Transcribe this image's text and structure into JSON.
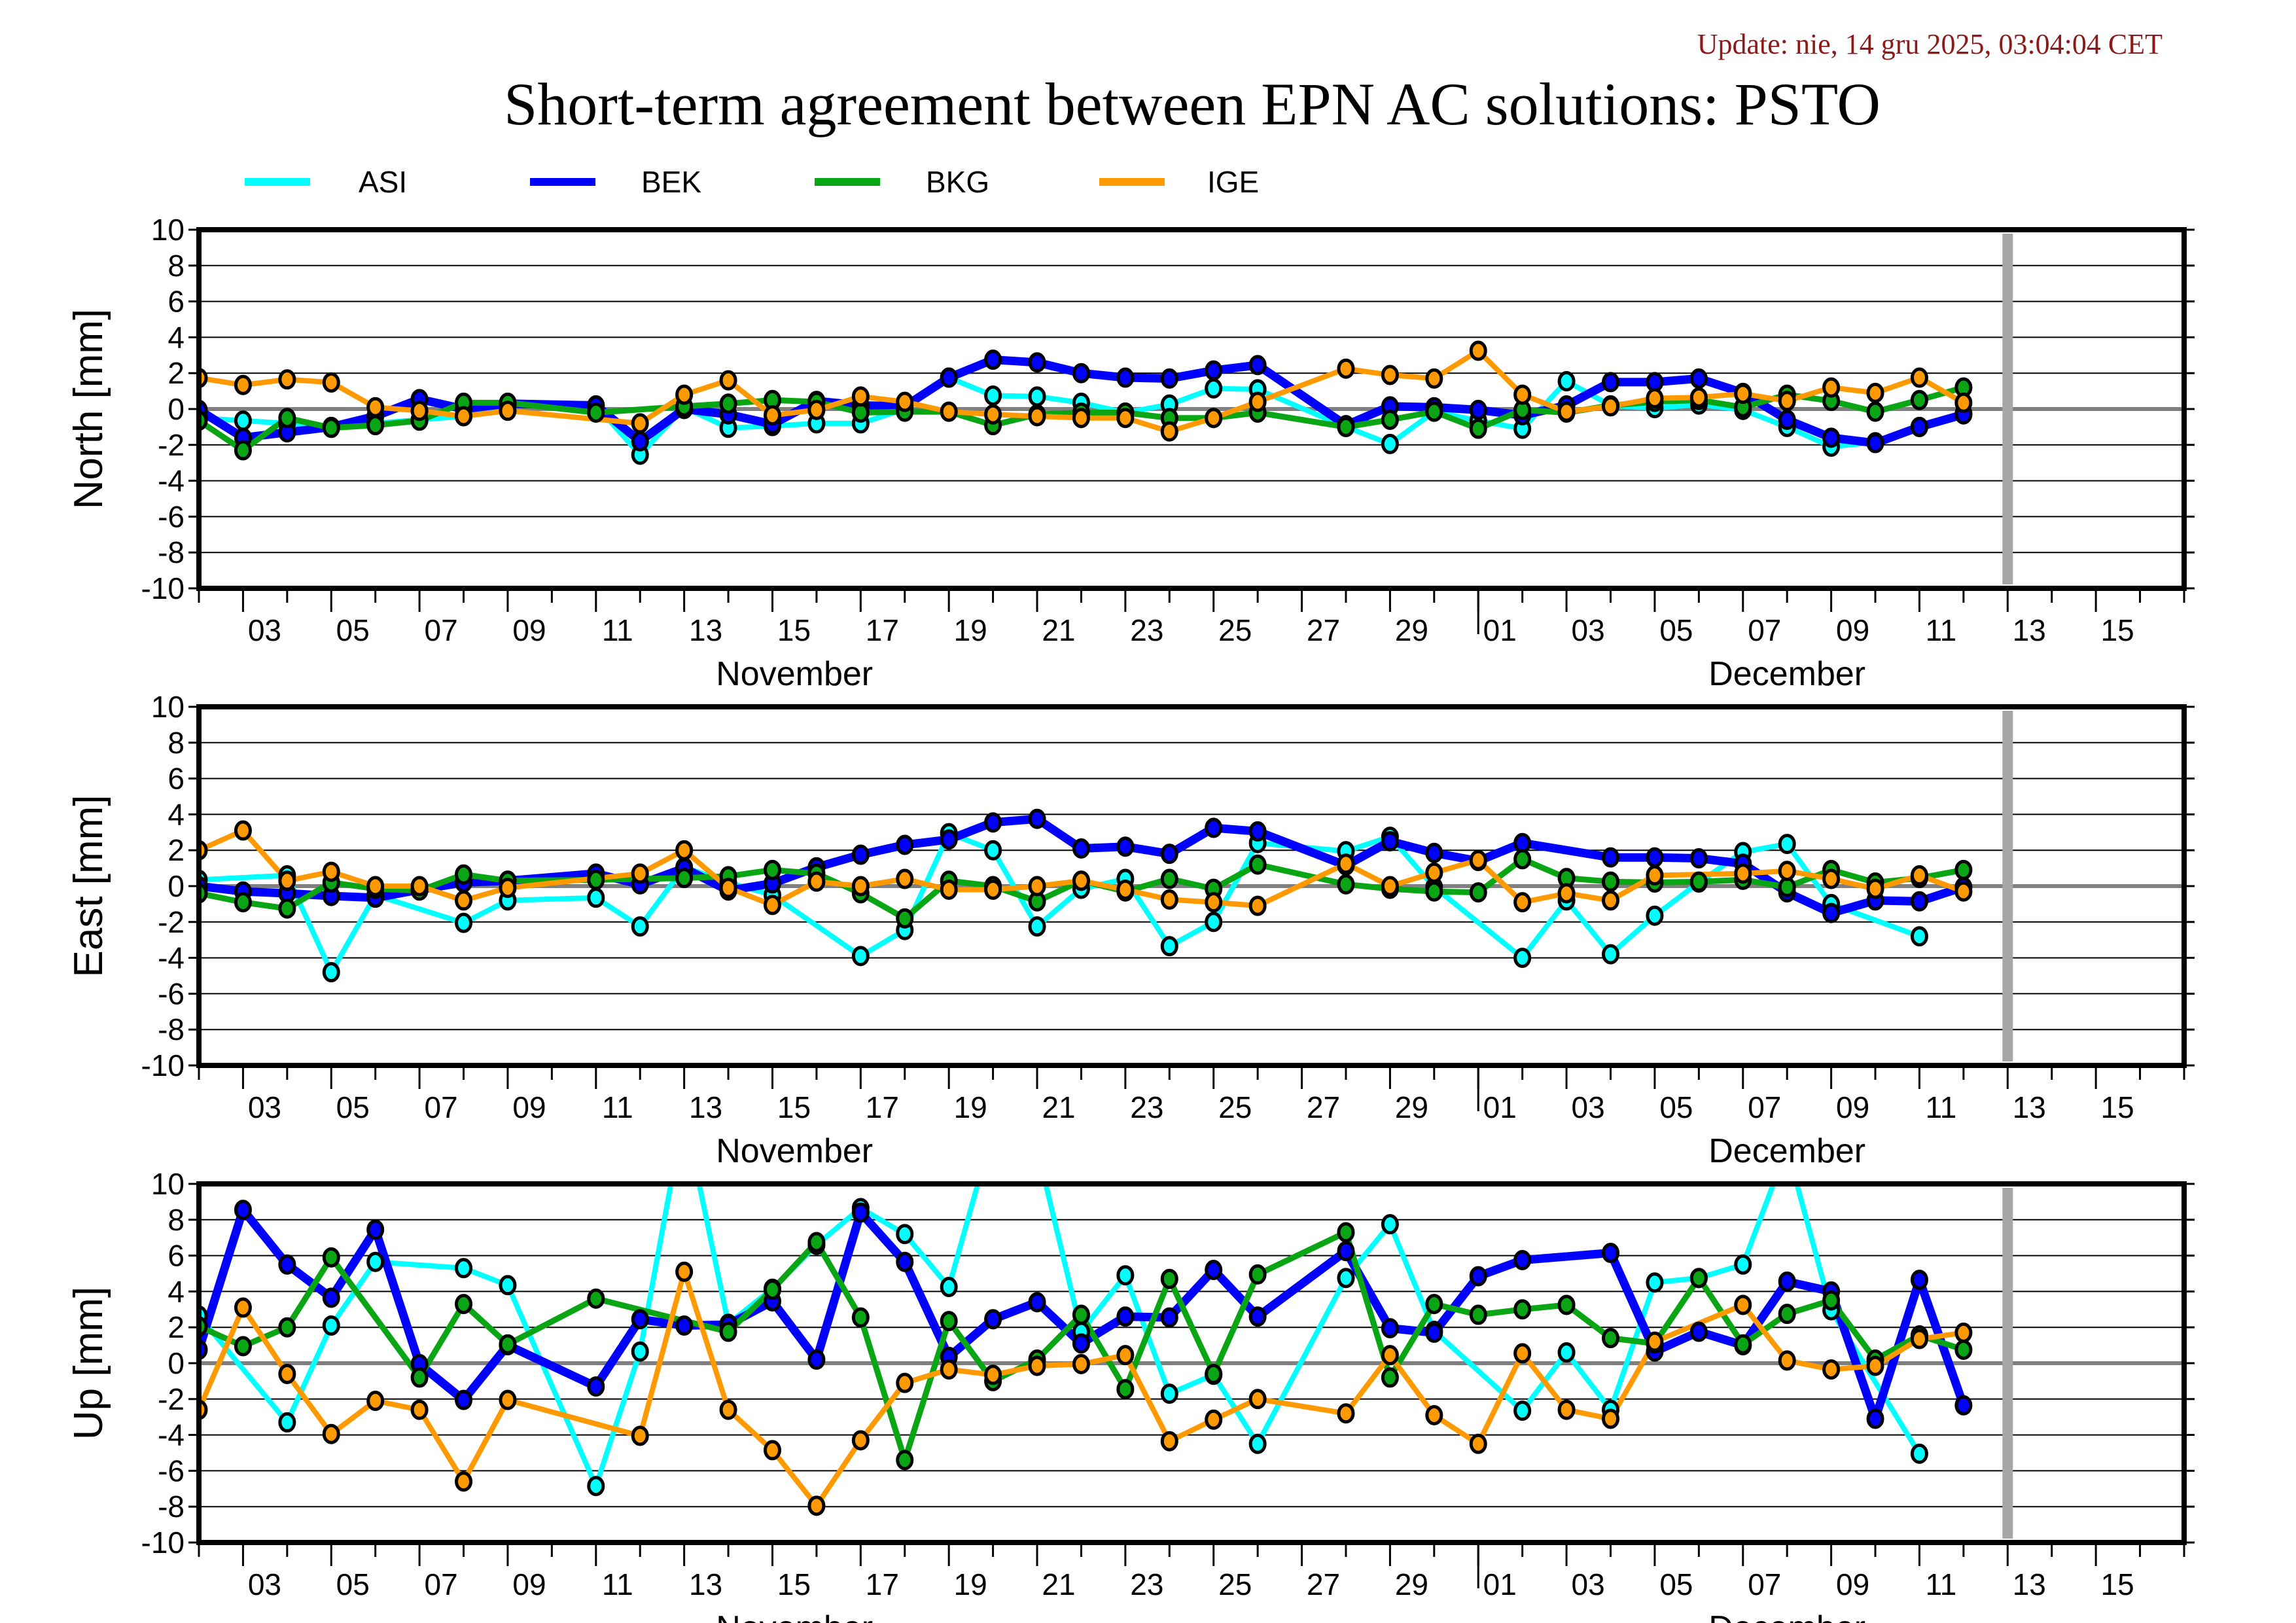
{
  "header": {
    "update": "Update: nie, 14 gru 2025, 03:04:04 CET",
    "title": "Short-term agreement between EPN AC solutions: PSTO"
  },
  "chart_data": {
    "type": "line",
    "title": "Short-term agreement between EPN AC solutions: PSTO",
    "legend_placement": "top",
    "grid": true,
    "x_range": [
      "2025-11-02",
      "2025-12-17"
    ],
    "x_major_tick_labels": [
      "03",
      "05",
      "07",
      "09",
      "11",
      "13",
      "15",
      "17",
      "19",
      "21",
      "23",
      "25",
      "27",
      "29",
      "01",
      "03",
      "05",
      "07",
      "09",
      "11",
      "13",
      "15"
    ],
    "x_major_tick_days": [
      3,
      5,
      7,
      9,
      11,
      13,
      15,
      17,
      19,
      21,
      23,
      25,
      27,
      29,
      31,
      33,
      35,
      37,
      39,
      41,
      43,
      45
    ],
    "month_labels": [
      {
        "label": "November",
        "center_day": 15.5
      },
      {
        "label": "December",
        "center_day": 38
      }
    ],
    "month_boundary_day": 31,
    "current_day_marker_day": 43,
    "y_ticks": [
      10,
      8,
      6,
      4,
      2,
      0,
      -2,
      -4,
      -6,
      -8,
      -10
    ],
    "series_meta": [
      {
        "name": "ASI",
        "color": "#00ffff"
      },
      {
        "name": "BEK",
        "color": "#0000ff"
      },
      {
        "name": "BKG",
        "color": "#0aa514"
      },
      {
        "name": "IGE",
        "color": "#ff9900"
      }
    ],
    "days_note": "x values are day-of-November (Dec d = 30 + d); first sample Nov 2, last Dec 12",
    "x": [
      2,
      3,
      4,
      5,
      6,
      7,
      8,
      9,
      10,
      11,
      12,
      13,
      14,
      15,
      16,
      17,
      18,
      19,
      20,
      21,
      22,
      23,
      24,
      25,
      26,
      27,
      28,
      29,
      30,
      31,
      32,
      33,
      34,
      35,
      36,
      37,
      38,
      39,
      40,
      41,
      42
    ],
    "panels": [
      {
        "ylabel": "North [mm]",
        "ylim": [
          -10,
          10
        ],
        "series": [
          {
            "name": "ASI",
            "values": [
              -0.5,
              -0.65,
              -0.8,
              -1.0,
              -0.8,
              -0.6,
              -0.4,
              0.3,
              null,
              0.2,
              -2.55,
              0.1,
              -1.05,
              -0.95,
              -0.8,
              -0.8,
              0.0,
              1.75,
              0.75,
              0.7,
              0.35,
              -0.2,
              0.25,
              1.15,
              1.1,
              null,
              -1.0,
              -1.95,
              -0.15,
              -0.65,
              -1.1,
              1.55,
              0.2,
              0.05,
              0.25,
              -0.05,
              -1.0,
              -2.1,
              -1.85,
              -1.0,
              -0.25
            ]
          },
          {
            "name": "BEK",
            "values": [
              -0.05,
              -1.6,
              -1.3,
              -1.0,
              -0.4,
              0.55,
              0.0,
              0.3,
              null,
              0.2,
              -1.8,
              0.0,
              -0.3,
              -0.85,
              0.45,
              0.2,
              0.15,
              1.75,
              2.75,
              2.6,
              2.0,
              1.75,
              1.7,
              2.15,
              2.45,
              null,
              -0.9,
              0.15,
              0.1,
              -0.05,
              -0.35,
              0.2,
              1.5,
              1.5,
              1.7,
              0.9,
              -0.6,
              -1.6,
              -1.9,
              -1.0,
              -0.3
            ]
          },
          {
            "name": "BKG",
            "values": [
              -0.65,
              -2.3,
              -0.5,
              -1.05,
              -0.9,
              -0.65,
              0.35,
              0.35,
              null,
              -0.2,
              null,
              0.15,
              0.3,
              0.5,
              0.4,
              -0.2,
              -0.15,
              -0.15,
              -0.9,
              -0.3,
              -0.2,
              -0.2,
              -0.5,
              -0.5,
              -0.2,
              null,
              -1.0,
              -0.6,
              -0.15,
              -1.1,
              -0.05,
              -0.2,
              0.2,
              0.4,
              0.5,
              0.1,
              0.8,
              0.45,
              -0.15,
              0.5,
              1.2
            ]
          },
          {
            "name": "IGE",
            "values": [
              1.73,
              1.34,
              1.65,
              1.48,
              0.1,
              -0.1,
              -0.4,
              -0.1,
              null,
              null,
              -0.8,
              0.8,
              1.6,
              -0.35,
              -0.05,
              0.7,
              0.4,
              -0.15,
              -0.3,
              -0.4,
              -0.5,
              -0.5,
              -1.25,
              -0.5,
              0.4,
              null,
              2.25,
              1.9,
              1.7,
              3.25,
              0.8,
              -0.15,
              0.15,
              0.6,
              0.65,
              0.85,
              0.45,
              1.2,
              0.9,
              1.75,
              0.35
            ]
          }
        ]
      },
      {
        "ylabel": "East [mm]",
        "ylim": [
          -10,
          10
        ],
        "series": [
          {
            "name": "ASI",
            "values": [
              0.35,
              null,
              0.6,
              -4.8,
              -0.5,
              null,
              -2.05,
              -0.8,
              null,
              -0.65,
              -2.25,
              1.05,
              0.2,
              -0.5,
              null,
              -3.9,
              -2.45,
              2.95,
              2.0,
              -2.25,
              -0.15,
              0.4,
              -3.35,
              -2.0,
              2.4,
              null,
              1.95,
              2.75,
              -0.05,
              null,
              -4.0,
              -0.8,
              -3.8,
              -1.65,
              0.2,
              1.9,
              2.35,
              -1.0,
              null,
              -2.8,
              null
            ]
          },
          {
            "name": "BEK",
            "values": [
              0.0,
              -0.3,
              -0.4,
              -0.55,
              -0.65,
              -0.2,
              0.2,
              0.3,
              null,
              0.7,
              0.1,
              1.0,
              -0.25,
              0.15,
              1.05,
              1.75,
              2.3,
              2.6,
              3.55,
              3.75,
              2.1,
              2.2,
              1.8,
              3.25,
              3.05,
              null,
              1.15,
              2.5,
              1.85,
              1.4,
              2.4,
              null,
              1.6,
              1.6,
              1.55,
              1.25,
              -0.35,
              -1.5,
              -0.8,
              -0.85,
              -0.05
            ]
          },
          {
            "name": "BKG",
            "values": [
              -0.4,
              -0.9,
              -1.25,
              0.2,
              -0.15,
              -0.25,
              0.65,
              0.3,
              null,
              0.35,
              null,
              0.45,
              0.55,
              0.9,
              0.7,
              -0.4,
              -1.8,
              0.3,
              0.0,
              -0.85,
              0.3,
              -0.3,
              0.4,
              -0.15,
              1.2,
              null,
              0.1,
              -0.15,
              -0.3,
              -0.35,
              1.5,
              0.45,
              0.25,
              0.2,
              0.25,
              0.35,
              -0.05,
              0.9,
              0.2,
              0.45,
              0.9
            ]
          },
          {
            "name": "IGE",
            "values": [
              2.0,
              3.1,
              0.3,
              0.8,
              0.0,
              0.0,
              -0.8,
              -0.1,
              null,
              null,
              0.7,
              2.0,
              -0.1,
              -1.05,
              0.25,
              0.0,
              0.4,
              -0.2,
              -0.2,
              0.0,
              0.3,
              -0.2,
              -0.75,
              -0.9,
              -1.1,
              null,
              1.25,
              0.0,
              0.75,
              1.45,
              -0.9,
              -0.4,
              -0.8,
              0.6,
              null,
              0.7,
              0.85,
              0.4,
              -0.15,
              0.6,
              -0.3
            ]
          }
        ]
      },
      {
        "ylabel": "Up [mm]",
        "ylim": [
          -10,
          10
        ],
        "series": [
          {
            "name": "ASI",
            "values": [
              2.65,
              null,
              -3.3,
              2.1,
              5.65,
              null,
              5.3,
              4.35,
              null,
              -6.85,
              0.65,
              14.0,
              2.2,
              4.15,
              6.6,
              8.65,
              7.2,
              4.25,
              13.0,
              12.0,
              1.75,
              4.9,
              -1.7,
              -0.65,
              -4.5,
              null,
              4.75,
              7.75,
              1.8,
              null,
              -2.65,
              0.6,
              -2.6,
              4.5,
              4.75,
              5.5,
              12.0,
              2.95,
              null,
              -5.05,
              null
            ]
          },
          {
            "name": "BEK",
            "values": [
              0.75,
              8.55,
              5.5,
              3.65,
              7.45,
              -0.05,
              -2.05,
              1.0,
              null,
              -1.3,
              2.45,
              2.1,
              2.15,
              3.45,
              0.2,
              8.4,
              5.65,
              0.35,
              2.45,
              3.4,
              1.1,
              2.6,
              2.55,
              5.2,
              2.6,
              null,
              6.25,
              1.95,
              1.7,
              4.85,
              5.75,
              null,
              6.15,
              0.65,
              1.75,
              1.0,
              4.55,
              4.0,
              -3.1,
              4.65,
              -2.35
            ]
          },
          {
            "name": "BKG",
            "values": [
              2.05,
              0.95,
              2.0,
              5.9,
              null,
              -0.8,
              3.3,
              1.05,
              null,
              3.6,
              null,
              null,
              1.75,
              4.1,
              6.75,
              2.55,
              -5.4,
              2.35,
              -1.0,
              0.2,
              2.7,
              -1.45,
              4.7,
              -0.6,
              4.95,
              null,
              7.3,
              -0.8,
              3.3,
              2.7,
              3.0,
              3.25,
              1.4,
              1.1,
              4.75,
              1.05,
              2.75,
              3.5,
              0.2,
              1.55,
              0.75
            ]
          },
          {
            "name": "IGE",
            "values": [
              -2.6,
              3.1,
              -0.6,
              -3.95,
              -2.1,
              -2.6,
              -6.6,
              -2.05,
              null,
              null,
              -4.05,
              5.1,
              -2.6,
              -4.85,
              -7.95,
              -4.3,
              -1.1,
              -0.35,
              -0.65,
              -0.15,
              -0.05,
              0.45,
              -4.35,
              -3.15,
              -2.0,
              null,
              -2.8,
              0.45,
              -2.9,
              -4.5,
              0.55,
              -2.6,
              -3.1,
              1.2,
              null,
              3.25,
              0.15,
              -0.35,
              -0.15,
              1.35,
              1.7
            ]
          }
        ]
      }
    ]
  }
}
